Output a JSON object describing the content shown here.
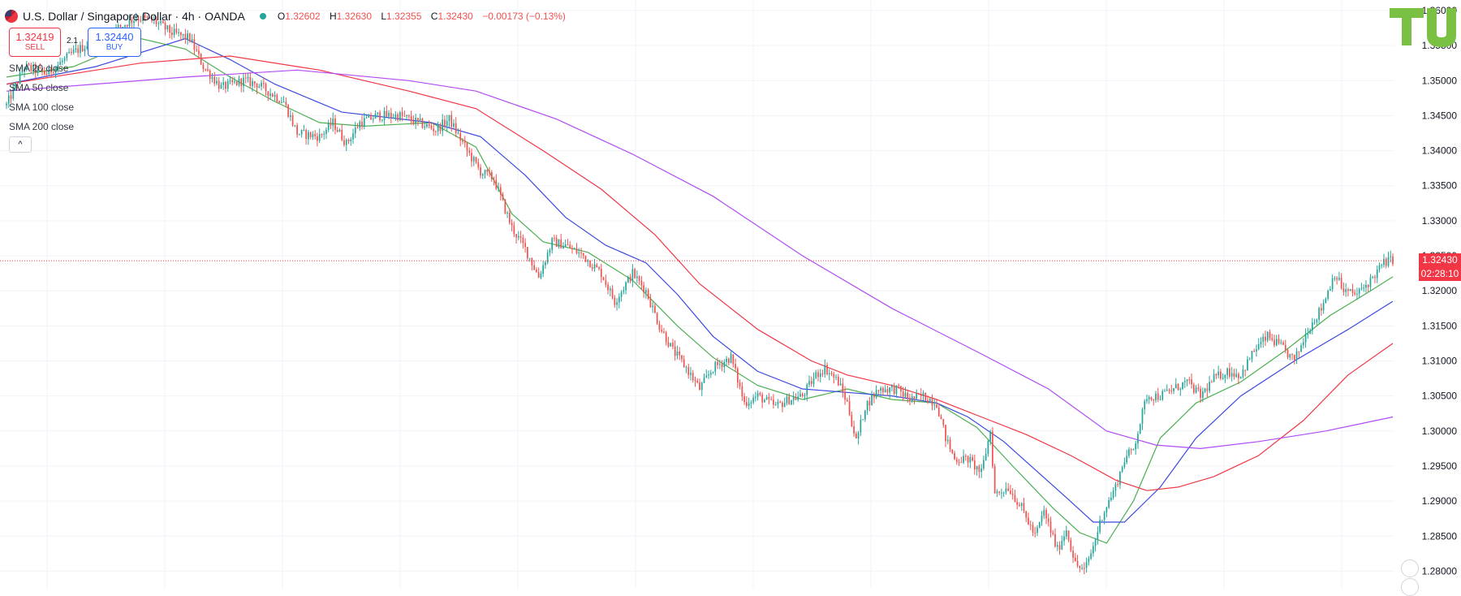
{
  "header": {
    "symbol": "U.S. Dollar / Singapore Dollar · 4h · OANDA",
    "o_label": "O",
    "o": "1.32602",
    "h_label": "H",
    "h": "1.32630",
    "l_label": "L",
    "l": "1.32355",
    "c_label": "C",
    "c": "1.32430",
    "change": "−0.00173 (−0.13%)"
  },
  "trade": {
    "sell_price": "1.32419",
    "sell_label": "SELL",
    "spread": "2.1",
    "buy_price": "1.32440",
    "buy_label": "BUY"
  },
  "legend": [
    "SMA 20 close",
    "SMA 50 close",
    "SMA 100 close",
    "SMA 200 close"
  ],
  "collapse_glyph": "^",
  "last_price_tag": {
    "price": "1.32430",
    "countdown": "02:28:10"
  },
  "logo_text": "TU",
  "colors": {
    "up": "#26a69a",
    "down": "#ef5350",
    "sma20": "#4caf50",
    "sma50": "#3b49df",
    "sma100": "#f23645",
    "sma200": "#b14cf5",
    "price_line": "#f23645"
  },
  "chart_data": {
    "type": "candlestick",
    "ylim": [
      1.2775,
      1.3615
    ],
    "y_ticks": [
      "1.36000",
      "1.35500",
      "1.35000",
      "1.34500",
      "1.34000",
      "1.33500",
      "1.33000",
      "1.32500",
      "1.32000",
      "1.31500",
      "1.31000",
      "1.30500",
      "1.30000",
      "1.29500",
      "1.29000",
      "1.28500",
      "1.28000"
    ],
    "y_tick_values": [
      1.36,
      1.355,
      1.35,
      1.345,
      1.34,
      1.335,
      1.33,
      1.325,
      1.32,
      1.315,
      1.31,
      1.305,
      1.3,
      1.295,
      1.29,
      1.285,
      1.28
    ],
    "last_price": 1.3243,
    "close_path": [
      [
        0,
        1.3465
      ],
      [
        8,
        1.352
      ],
      [
        18,
        1.351
      ],
      [
        30,
        1.354
      ],
      [
        38,
        1.3555
      ],
      [
        50,
        1.3575
      ],
      [
        58,
        1.359
      ],
      [
        66,
        1.3585
      ],
      [
        74,
        1.3568
      ],
      [
        82,
        1.356
      ],
      [
        88,
        1.352
      ],
      [
        96,
        1.349
      ],
      [
        106,
        1.35
      ],
      [
        112,
        1.3495
      ],
      [
        124,
        1.347
      ],
      [
        130,
        1.3425
      ],
      [
        140,
        1.342
      ],
      [
        146,
        1.344
      ],
      [
        152,
        1.341
      ],
      [
        158,
        1.344
      ],
      [
        166,
        1.345
      ],
      [
        176,
        1.345
      ],
      [
        184,
        1.344
      ],
      [
        192,
        1.343
      ],
      [
        198,
        1.3445
      ],
      [
        206,
        1.34
      ],
      [
        212,
        1.337
      ],
      [
        218,
        1.336
      ],
      [
        226,
        1.329
      ],
      [
        232,
        1.326
      ],
      [
        238,
        1.322
      ],
      [
        244,
        1.327
      ],
      [
        250,
        1.3265
      ],
      [
        258,
        1.325
      ],
      [
        266,
        1.3225
      ],
      [
        272,
        1.3185
      ],
      [
        280,
        1.3225
      ],
      [
        286,
        1.32
      ],
      [
        292,
        1.315
      ],
      [
        298,
        1.3115
      ],
      [
        304,
        1.309
      ],
      [
        310,
        1.306
      ],
      [
        316,
        1.309
      ],
      [
        324,
        1.3105
      ],
      [
        330,
        1.304
      ],
      [
        336,
        1.305
      ],
      [
        344,
        1.3035
      ],
      [
        350,
        1.3045
      ],
      [
        356,
        1.305
      ],
      [
        362,
        1.308
      ],
      [
        366,
        1.309
      ],
      [
        372,
        1.307
      ],
      [
        376,
        1.304
      ],
      [
        380,
        1.2985
      ],
      [
        384,
        1.3035
      ],
      [
        390,
        1.306
      ],
      [
        398,
        1.306
      ],
      [
        404,
        1.3045
      ],
      [
        410,
        1.305
      ],
      [
        416,
        1.304
      ],
      [
        420,
        1.299
      ],
      [
        424,
        1.296
      ],
      [
        430,
        1.296
      ],
      [
        436,
        1.294
      ],
      [
        440,
        1.3
      ],
      [
        442,
        1.291
      ],
      [
        448,
        1.292
      ],
      [
        454,
        1.289
      ],
      [
        460,
        1.285
      ],
      [
        464,
        1.2885
      ],
      [
        470,
        1.283
      ],
      [
        474,
        1.286
      ],
      [
        478,
        1.281
      ],
      [
        482,
        1.28
      ],
      [
        486,
        1.2835
      ],
      [
        490,
        1.288
      ],
      [
        496,
        1.292
      ],
      [
        500,
        1.296
      ],
      [
        504,
        1.2975
      ],
      [
        510,
        1.305
      ],
      [
        516,
        1.305
      ],
      [
        522,
        1.306
      ],
      [
        528,
        1.307
      ],
      [
        534,
        1.305
      ],
      [
        540,
        1.3075
      ],
      [
        546,
        1.3085
      ],
      [
        552,
        1.308
      ],
      [
        558,
        1.3115
      ],
      [
        564,
        1.3135
      ],
      [
        570,
        1.312
      ],
      [
        576,
        1.31
      ],
      [
        582,
        1.3145
      ],
      [
        588,
        1.3175
      ],
      [
        594,
        1.3225
      ],
      [
        598,
        1.32
      ],
      [
        604,
        1.3195
      ],
      [
        610,
        1.3215
      ],
      [
        616,
        1.324
      ],
      [
        620,
        1.3245
      ]
    ],
    "series": [
      {
        "name": "SMA 20 close",
        "points": [
          [
            0,
            1.3505
          ],
          [
            30,
            1.352
          ],
          [
            60,
            1.356
          ],
          [
            80,
            1.3545
          ],
          [
            100,
            1.3505
          ],
          [
            120,
            1.347
          ],
          [
            140,
            1.344
          ],
          [
            160,
            1.3435
          ],
          [
            190,
            1.344
          ],
          [
            210,
            1.3405
          ],
          [
            226,
            1.331
          ],
          [
            240,
            1.327
          ],
          [
            260,
            1.3255
          ],
          [
            280,
            1.3215
          ],
          [
            300,
            1.315
          ],
          [
            316,
            1.3105
          ],
          [
            336,
            1.3065
          ],
          [
            356,
            1.3045
          ],
          [
            376,
            1.306
          ],
          [
            396,
            1.3045
          ],
          [
            416,
            1.304
          ],
          [
            434,
            1.3005
          ],
          [
            450,
            1.295
          ],
          [
            468,
            1.289
          ],
          [
            480,
            1.2855
          ],
          [
            492,
            1.284
          ],
          [
            504,
            1.29
          ],
          [
            516,
            1.299
          ],
          [
            532,
            1.304
          ],
          [
            552,
            1.307
          ],
          [
            572,
            1.3115
          ],
          [
            592,
            1.3165
          ],
          [
            610,
            1.32
          ],
          [
            620,
            1.322
          ]
        ]
      },
      {
        "name": "SMA 50 close",
        "points": [
          [
            0,
            1.3495
          ],
          [
            40,
            1.352
          ],
          [
            80,
            1.356
          ],
          [
            100,
            1.353
          ],
          [
            120,
            1.3495
          ],
          [
            150,
            1.3455
          ],
          [
            190,
            1.344
          ],
          [
            212,
            1.342
          ],
          [
            232,
            1.3365
          ],
          [
            250,
            1.3305
          ],
          [
            268,
            1.3265
          ],
          [
            286,
            1.324
          ],
          [
            300,
            1.3195
          ],
          [
            316,
            1.3135
          ],
          [
            336,
            1.3085
          ],
          [
            356,
            1.306
          ],
          [
            376,
            1.3055
          ],
          [
            396,
            1.305
          ],
          [
            416,
            1.304
          ],
          [
            430,
            1.302
          ],
          [
            446,
            1.2985
          ],
          [
            460,
            1.2945
          ],
          [
            474,
            1.2905
          ],
          [
            486,
            1.287
          ],
          [
            500,
            1.287
          ],
          [
            516,
            1.292
          ],
          [
            532,
            1.299
          ],
          [
            552,
            1.305
          ],
          [
            576,
            1.31
          ],
          [
            600,
            1.3145
          ],
          [
            620,
            1.3185
          ]
        ]
      },
      {
        "name": "SMA 100 close",
        "points": [
          [
            0,
            1.3495
          ],
          [
            60,
            1.3525
          ],
          [
            100,
            1.3535
          ],
          [
            140,
            1.3515
          ],
          [
            180,
            1.3485
          ],
          [
            210,
            1.346
          ],
          [
            240,
            1.34
          ],
          [
            266,
            1.3345
          ],
          [
            290,
            1.328
          ],
          [
            310,
            1.321
          ],
          [
            336,
            1.3145
          ],
          [
            360,
            1.31
          ],
          [
            376,
            1.308
          ],
          [
            396,
            1.3065
          ],
          [
            416,
            1.3045
          ],
          [
            436,
            1.302
          ],
          [
            456,
            1.2995
          ],
          [
            476,
            1.2965
          ],
          [
            496,
            1.293
          ],
          [
            510,
            1.2915
          ],
          [
            524,
            1.292
          ],
          [
            540,
            1.2935
          ],
          [
            560,
            1.2965
          ],
          [
            580,
            1.3015
          ],
          [
            600,
            1.308
          ],
          [
            620,
            1.3125
          ]
        ]
      },
      {
        "name": "SMA 200 close",
        "points": [
          [
            0,
            1.3485
          ],
          [
            80,
            1.3505
          ],
          [
            130,
            1.3515
          ],
          [
            180,
            1.35
          ],
          [
            210,
            1.3485
          ],
          [
            246,
            1.3445
          ],
          [
            280,
            1.3395
          ],
          [
            316,
            1.3335
          ],
          [
            356,
            1.325
          ],
          [
            396,
            1.3175
          ],
          [
            436,
            1.311
          ],
          [
            466,
            1.306
          ],
          [
            492,
            1.3
          ],
          [
            514,
            1.298
          ],
          [
            534,
            1.2975
          ],
          [
            560,
            1.2985
          ],
          [
            590,
            1.3
          ],
          [
            620,
            1.302
          ]
        ]
      }
    ]
  }
}
